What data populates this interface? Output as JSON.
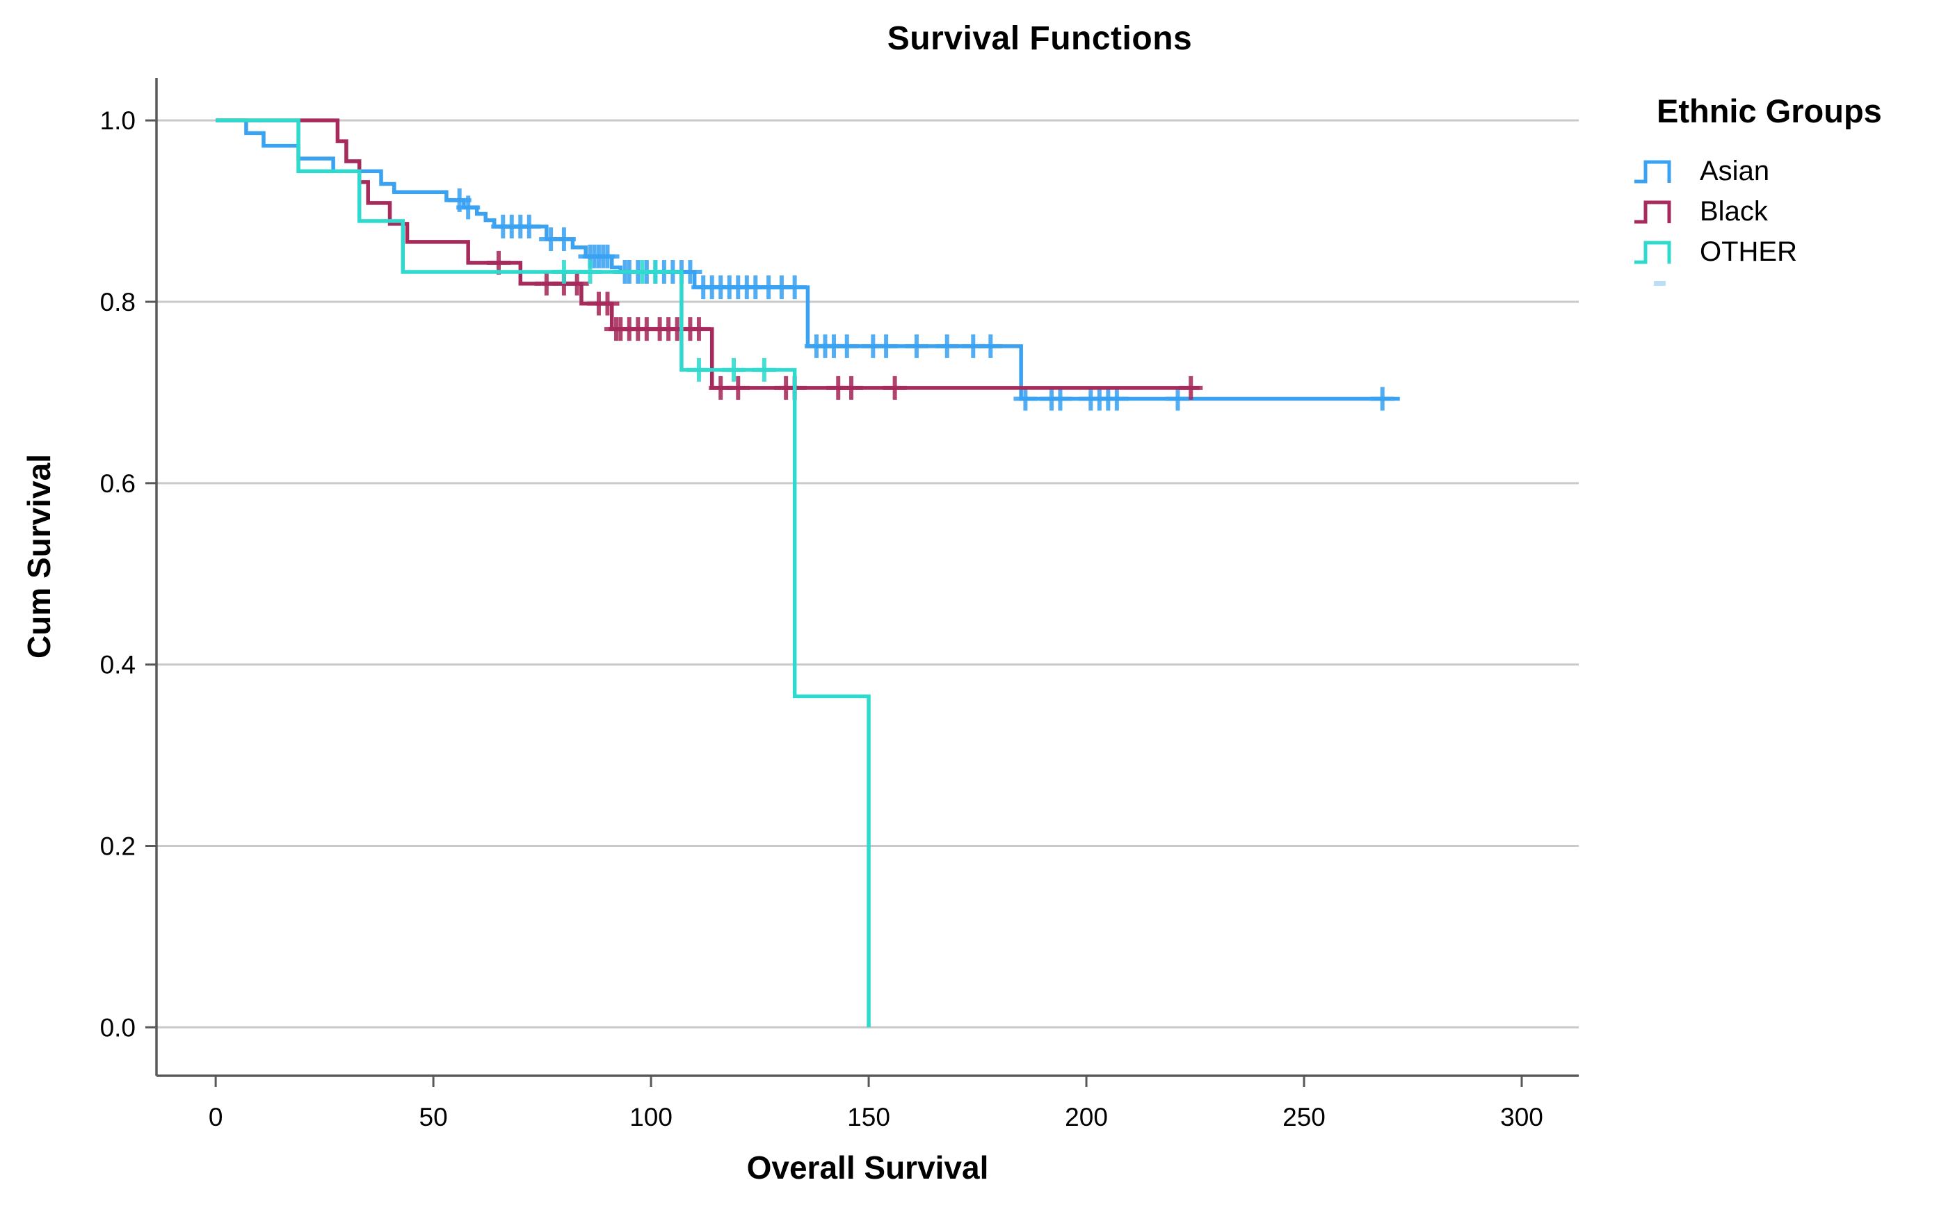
{
  "title": "Survival Functions",
  "x_axis_label": "Overall Survival",
  "y_axis_label": "Cum Survival",
  "legend": {
    "title": "Ethnic Groups",
    "items": [
      {
        "label": "Asian",
        "color": "#3aa2f1"
      },
      {
        "label": "Black",
        "color": "#a62a5b"
      },
      {
        "label": "OTHER",
        "color": "#30d9ce"
      }
    ]
  },
  "colors": {
    "asian": "#3aa2f1",
    "black_group": "#a62a5b",
    "other": "#30d9ce",
    "gridline": "#c9c9c9",
    "axis": "#58585a",
    "text": "#000000"
  },
  "chart_data": {
    "type": "line",
    "subtype": "kaplan-meier-step",
    "title": "Survival Functions",
    "xlabel": "Overall Survival",
    "ylabel": "Cum Survival",
    "legend_title": "Ethnic Groups",
    "legend_position": "right",
    "grid": "horizontal-only",
    "x_ticks": [
      0,
      50,
      100,
      150,
      200,
      250,
      300
    ],
    "y_ticks": [
      0.0,
      0.2,
      0.4,
      0.6,
      0.8,
      1.0
    ],
    "xlim": [
      -13.6,
      313.1
    ],
    "ylim": [
      -0.0534,
      1.0469
    ],
    "series": [
      {
        "name": "Asian",
        "color": "#3aa2f1",
        "end": 272,
        "steps": [
          [
            0,
            1.0
          ],
          [
            7,
            0.986
          ],
          [
            11,
            0.972
          ],
          [
            19,
            0.958
          ],
          [
            27,
            0.944
          ],
          [
            38,
            0.93
          ],
          [
            41,
            0.921
          ],
          [
            53,
            0.912
          ],
          [
            57,
            0.904
          ],
          [
            60,
            0.897
          ],
          [
            62,
            0.89
          ],
          [
            64,
            0.883
          ],
          [
            76,
            0.869
          ],
          [
            82,
            0.86
          ],
          [
            85,
            0.85
          ],
          [
            91,
            0.838
          ],
          [
            93,
            0.833
          ],
          [
            110,
            0.816
          ],
          [
            136,
            0.751
          ],
          [
            185,
            0.693
          ]
        ],
        "censors": [
          [
            56,
            0.912
          ],
          [
            58,
            0.904
          ],
          [
            66,
            0.883
          ],
          [
            68,
            0.883
          ],
          [
            70,
            0.883
          ],
          [
            72,
            0.883
          ],
          [
            77,
            0.869
          ],
          [
            80,
            0.869
          ],
          [
            86,
            0.85
          ],
          [
            87,
            0.85
          ],
          [
            88,
            0.85
          ],
          [
            89,
            0.85
          ],
          [
            90,
            0.85
          ],
          [
            94,
            0.833
          ],
          [
            95,
            0.833
          ],
          [
            97,
            0.833
          ],
          [
            99,
            0.833
          ],
          [
            101,
            0.833
          ],
          [
            103,
            0.833
          ],
          [
            105,
            0.833
          ],
          [
            107,
            0.833
          ],
          [
            109,
            0.833
          ],
          [
            112,
            0.816
          ],
          [
            114,
            0.816
          ],
          [
            116,
            0.816
          ],
          [
            118,
            0.816
          ],
          [
            120,
            0.816
          ],
          [
            122,
            0.816
          ],
          [
            124,
            0.816
          ],
          [
            127,
            0.816
          ],
          [
            130,
            0.816
          ],
          [
            133,
            0.816
          ],
          [
            138,
            0.751
          ],
          [
            140,
            0.751
          ],
          [
            142,
            0.751
          ],
          [
            145,
            0.751
          ],
          [
            151,
            0.751
          ],
          [
            154,
            0.751
          ],
          [
            161,
            0.751
          ],
          [
            168,
            0.751
          ],
          [
            174,
            0.751
          ],
          [
            178,
            0.751
          ],
          [
            186,
            0.693
          ],
          [
            192,
            0.693
          ],
          [
            194,
            0.693
          ],
          [
            201,
            0.693
          ],
          [
            203,
            0.693
          ],
          [
            205,
            0.693
          ],
          [
            207,
            0.693
          ],
          [
            221,
            0.693
          ],
          [
            268,
            0.693
          ]
        ]
      },
      {
        "name": "Black",
        "color": "#a62a5b",
        "end": 226,
        "steps": [
          [
            0,
            1.0
          ],
          [
            28,
            0.977
          ],
          [
            30,
            0.955
          ],
          [
            33,
            0.932
          ],
          [
            35,
            0.909
          ],
          [
            40,
            0.886
          ],
          [
            44,
            0.866
          ],
          [
            58,
            0.843
          ],
          [
            70,
            0.82
          ],
          [
            84,
            0.798
          ],
          [
            91,
            0.77
          ],
          [
            114,
            0.705
          ]
        ],
        "censors": [
          [
            65,
            0.843
          ],
          [
            76,
            0.82
          ],
          [
            80,
            0.82
          ],
          [
            83,
            0.82
          ],
          [
            88,
            0.798
          ],
          [
            90,
            0.798
          ],
          [
            92,
            0.77
          ],
          [
            93,
            0.77
          ],
          [
            95,
            0.77
          ],
          [
            97,
            0.77
          ],
          [
            99,
            0.77
          ],
          [
            102,
            0.77
          ],
          [
            104,
            0.77
          ],
          [
            106,
            0.77
          ],
          [
            109,
            0.77
          ],
          [
            111,
            0.77
          ],
          [
            116,
            0.705
          ],
          [
            120,
            0.705
          ],
          [
            131,
            0.705
          ],
          [
            133,
            0.705
          ],
          [
            143,
            0.705
          ],
          [
            146,
            0.705
          ],
          [
            156,
            0.705
          ],
          [
            224,
            0.705
          ]
        ]
      },
      {
        "name": "OTHER",
        "color": "#30d9ce",
        "end": 150,
        "steps": [
          [
            0,
            1.0
          ],
          [
            19,
            0.944
          ],
          [
            33,
            0.889
          ],
          [
            43,
            0.833
          ],
          [
            107,
            0.725
          ],
          [
            133,
            0.365
          ],
          [
            150,
            0.0
          ]
        ],
        "censors": [
          [
            80,
            0.833
          ],
          [
            86,
            0.833
          ],
          [
            98,
            0.833
          ],
          [
            101,
            0.833
          ],
          [
            111,
            0.725
          ],
          [
            119,
            0.725
          ],
          [
            126,
            0.725
          ]
        ]
      }
    ]
  }
}
